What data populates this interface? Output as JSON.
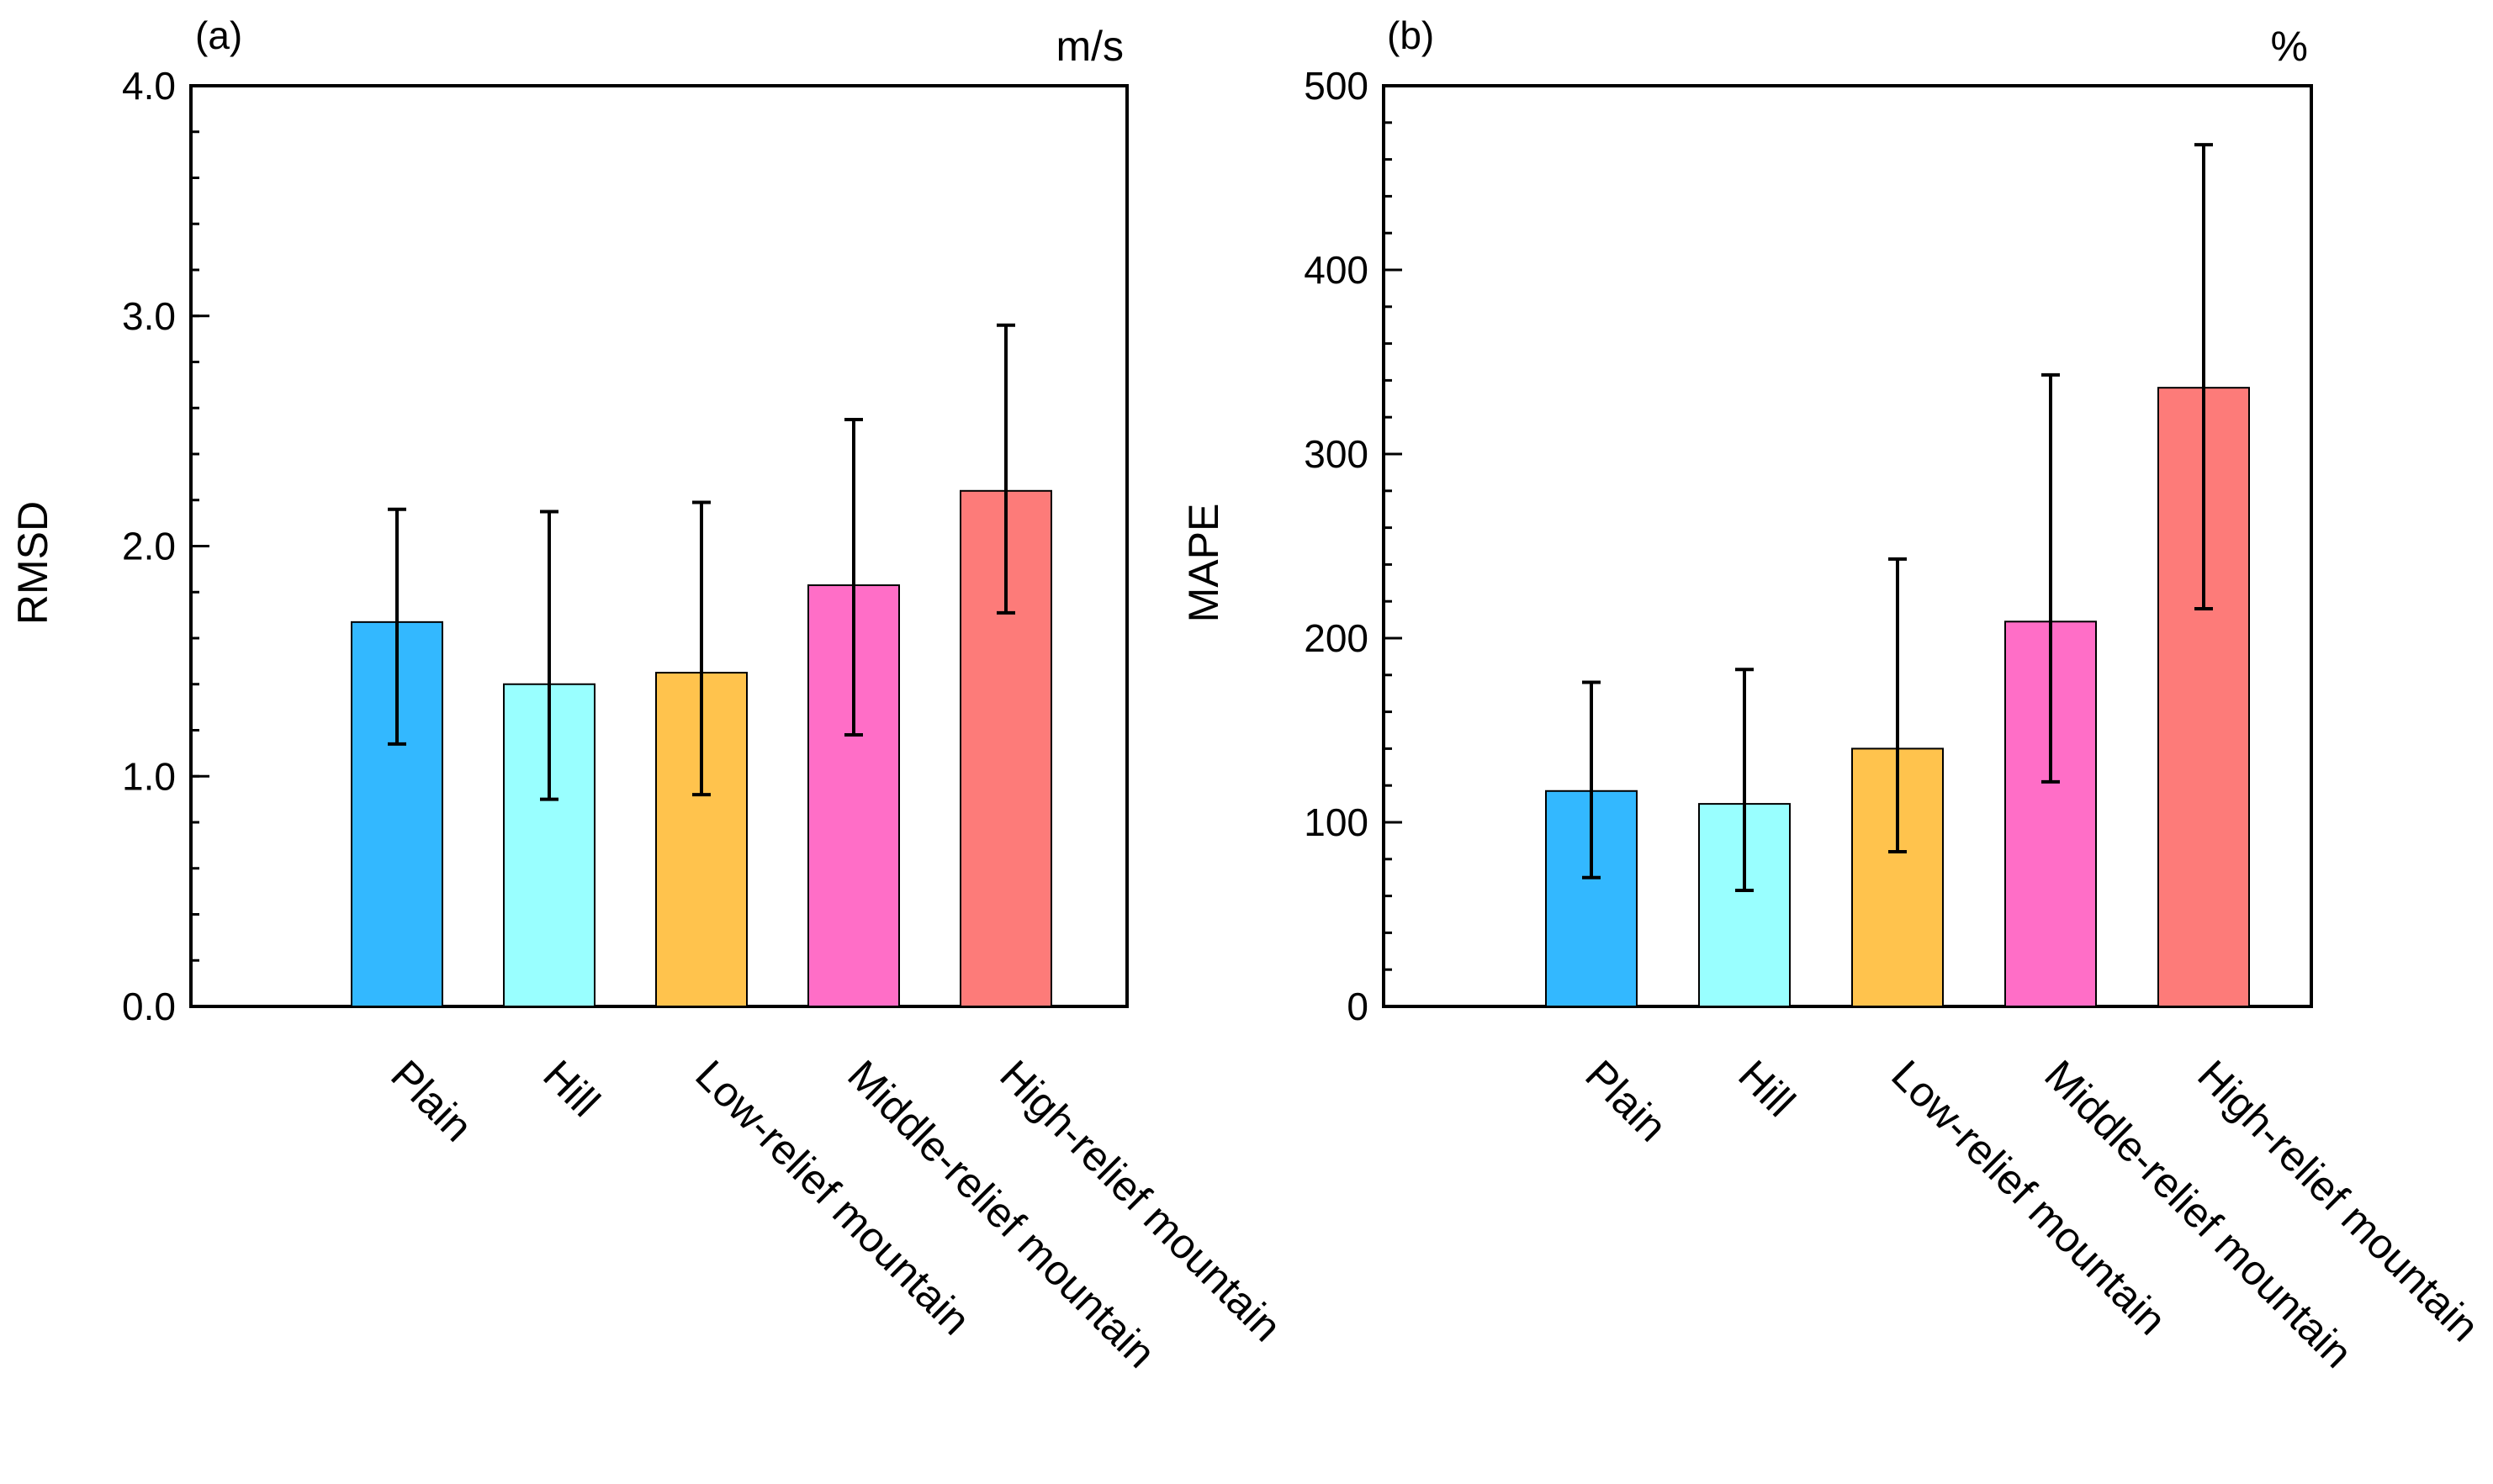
{
  "figure": {
    "colors": {
      "Plain": "#33b8ff",
      "Hill": "#99ffff",
      "Low-relief mountain": "#ffc34d",
      "Middle-relief mountain": "#ff6ec7",
      "High-relief mountain": "#fd7b79",
      "axis": "#000000",
      "errorbar": "#000000"
    }
  },
  "chart_data": [
    {
      "type": "bar",
      "panel_label": "(a)",
      "unit": "m/s",
      "title": "",
      "xlabel": "",
      "ylabel": "RMSD",
      "ylim": [
        0,
        4.0
      ],
      "yticks": [
        0.0,
        1.0,
        2.0,
        3.0,
        4.0
      ],
      "ytick_labels": [
        "0.0",
        "1.0",
        "2.0",
        "3.0",
        "4.0"
      ],
      "minor_tick_step": 0.2,
      "grid": false,
      "categories": [
        "Plain",
        "Hill",
        "Low-relief mountain",
        "Middle-relief mountain",
        "High-relief mountain"
      ],
      "values": [
        1.67,
        1.4,
        1.45,
        1.83,
        2.24
      ],
      "error_low": [
        1.14,
        0.9,
        0.92,
        1.18,
        1.71
      ],
      "error_high": [
        2.16,
        2.15,
        2.19,
        2.55,
        2.96
      ]
    },
    {
      "type": "bar",
      "panel_label": "(b)",
      "unit": "%",
      "title": "",
      "xlabel": "",
      "ylabel": "MAPE",
      "ylim": [
        0,
        500
      ],
      "yticks": [
        0,
        100,
        200,
        300,
        400,
        500
      ],
      "ytick_labels": [
        "0",
        "100",
        "200",
        "300",
        "400",
        "500"
      ],
      "minor_tick_step": 20,
      "grid": false,
      "categories": [
        "Plain",
        "Hill",
        "Low-relief mountain",
        "Middle-relief mountain",
        "High-relief mountain"
      ],
      "values": [
        117,
        110,
        140,
        209,
        336
      ],
      "error_low": [
        70,
        63,
        84,
        122,
        216
      ],
      "error_high": [
        176,
        183,
        243,
        343,
        468
      ]
    }
  ]
}
